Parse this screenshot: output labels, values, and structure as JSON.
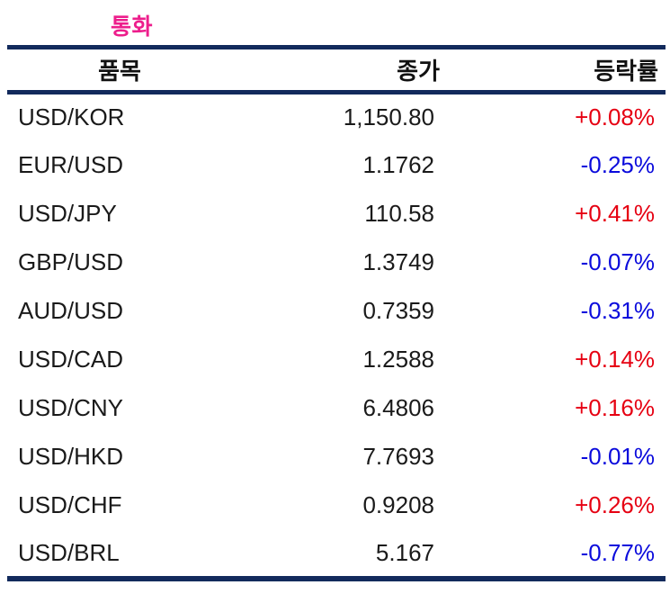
{
  "title": "통화",
  "colors": {
    "title_pink": "#ED1E8C",
    "rule_navy": "#122A5C",
    "up_red": "#E60012",
    "down_blue": "#0B0BDC",
    "text": "#1A1A1A"
  },
  "table": {
    "headers": [
      {
        "key": "item",
        "label": "품목"
      },
      {
        "key": "close",
        "label": "종가"
      },
      {
        "key": "change",
        "label": "등락률"
      }
    ],
    "rows": [
      {
        "item": "USD/KOR",
        "close": "1,150.80",
        "change": "+0.08%",
        "direction": "up"
      },
      {
        "item": "EUR/USD",
        "close": "1.1762",
        "change": "-0.25%",
        "direction": "down"
      },
      {
        "item": "USD/JPY",
        "close": "110.58",
        "change": "+0.41%",
        "direction": "up"
      },
      {
        "item": "GBP/USD",
        "close": "1.3749",
        "change": "-0.07%",
        "direction": "down"
      },
      {
        "item": "AUD/USD",
        "close": "0.7359",
        "change": "-0.31%",
        "direction": "down"
      },
      {
        "item": "USD/CAD",
        "close": "1.2588",
        "change": "+0.14%",
        "direction": "up"
      },
      {
        "item": "USD/CNY",
        "close": "6.4806",
        "change": "+0.16%",
        "direction": "up"
      },
      {
        "item": "USD/HKD",
        "close": "7.7693",
        "change": "-0.01%",
        "direction": "down"
      },
      {
        "item": "USD/CHF",
        "close": "0.9208",
        "change": "+0.26%",
        "direction": "up"
      },
      {
        "item": "USD/BRL",
        "close": "5.167",
        "change": "-0.77%",
        "direction": "down"
      }
    ]
  }
}
